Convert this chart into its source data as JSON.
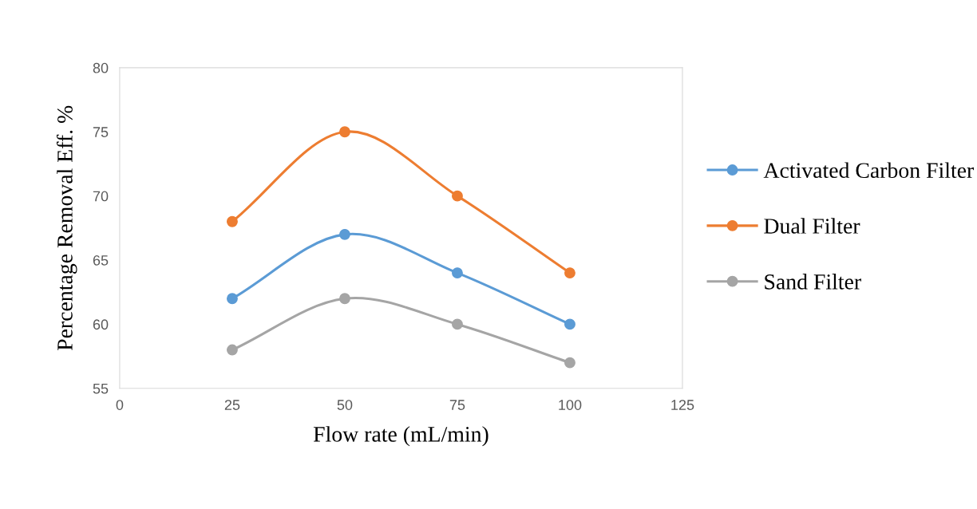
{
  "chart_data": {
    "type": "line",
    "xlabel": "Flow rate (mL/min)",
    "ylabel": "Percentage Removal Eff. %",
    "x": [
      25,
      50,
      75,
      100
    ],
    "series": [
      {
        "name": "Activated Carbon Filter",
        "color": "#5b9bd5",
        "values": [
          62,
          67,
          64,
          60
        ]
      },
      {
        "name": "Dual Filter",
        "color": "#ed7d31",
        "values": [
          68,
          75,
          70,
          64
        ]
      },
      {
        "name": "Sand Filter",
        "color": "#a5a5a5",
        "values": [
          58,
          62,
          60,
          57
        ]
      }
    ],
    "xlim": [
      0,
      125
    ],
    "xticks": [
      0,
      25,
      50,
      75,
      100,
      125
    ],
    "ylim": [
      55,
      80
    ],
    "yticks": [
      55,
      60,
      65,
      70,
      75,
      80
    ],
    "grid": false,
    "legend": "right",
    "marker": "circle",
    "line_style": "solid"
  }
}
